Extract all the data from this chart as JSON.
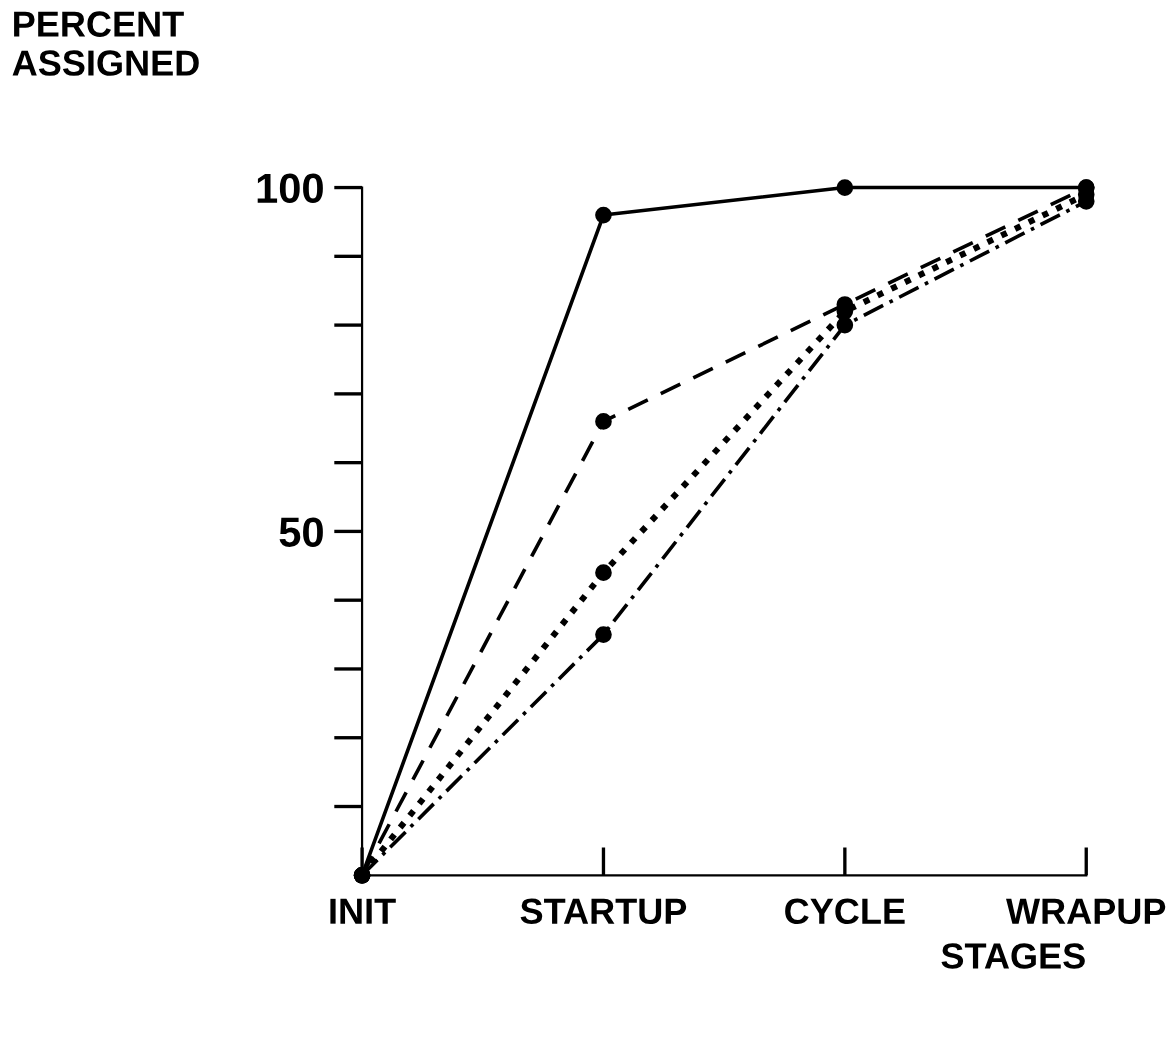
{
  "chart_data": {
    "type": "line",
    "ylabel": "PERCENT\nASSIGNED",
    "xlabel": "STAGES",
    "categories": [
      "INIT",
      "STARTUP",
      "CYCLE",
      "WRAPUP"
    ],
    "series": [
      {
        "color": "#000000",
        "line_style": "solid",
        "values": [
          0,
          96,
          100,
          100
        ]
      },
      {
        "color": "#000000",
        "line_style": "dashed",
        "values": [
          0,
          66,
          83,
          100
        ]
      },
      {
        "color": "#000000",
        "line_style": "dotted",
        "values": [
          0,
          44,
          82,
          99
        ]
      },
      {
        "color": "#000000",
        "line_style": "dashdot",
        "values": [
          0,
          35,
          80,
          98
        ]
      }
    ],
    "ylim": [
      0,
      100
    ],
    "yticks": [
      {
        "value": 10,
        "label": null
      },
      {
        "value": 20,
        "label": null
      },
      {
        "value": 30,
        "label": null
      },
      {
        "value": 40,
        "label": null
      },
      50,
      {
        "value": 60,
        "label": null
      },
      {
        "value": 70,
        "label": null
      },
      {
        "value": 80,
        "label": null
      },
      {
        "value": 90,
        "label": null
      },
      100
    ],
    "marker": "circle",
    "grid": false,
    "legend": false
  }
}
